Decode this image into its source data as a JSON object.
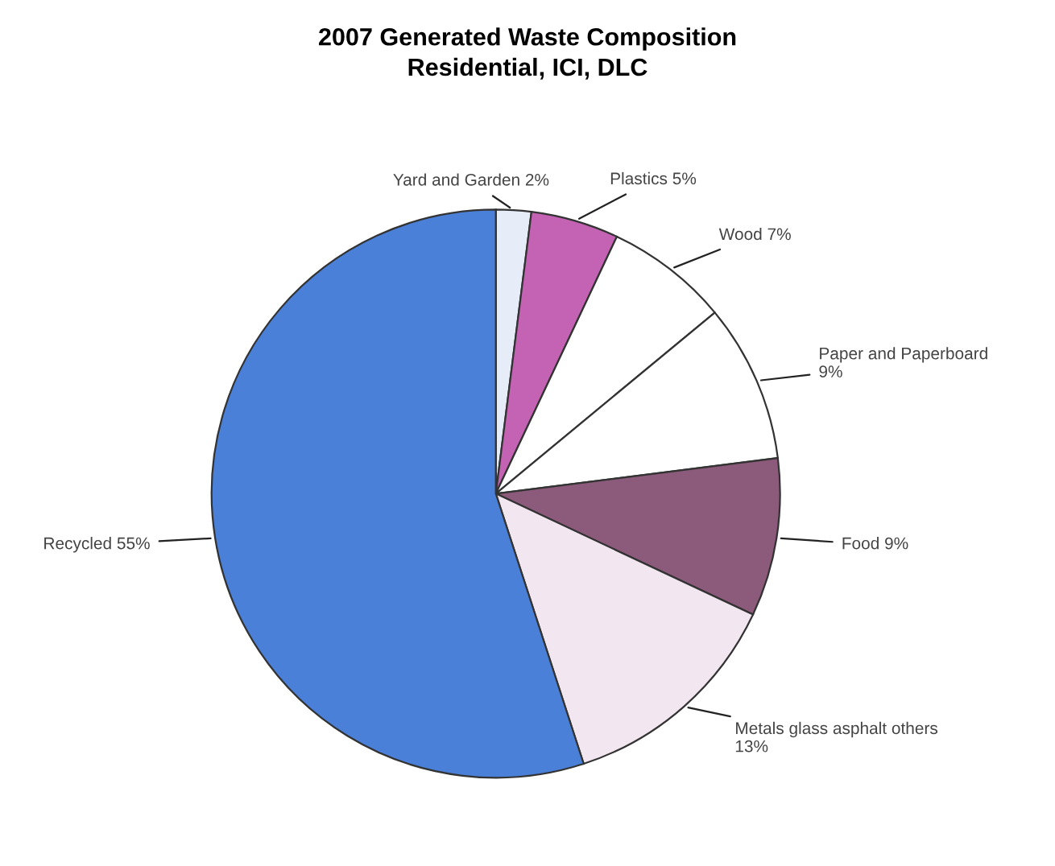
{
  "chart_data": {
    "type": "pie",
    "title": "2007 Generated Waste Composition",
    "subtitle": "Residential, ICI, DLC",
    "categories": [
      "Yard and Garden",
      "Plastics",
      "Wood",
      "Paper and Paperboard",
      "Food",
      "Metals glass asphalt others",
      "Recycled"
    ],
    "values": [
      2,
      5,
      7,
      9,
      9,
      13,
      55
    ],
    "value_labels": [
      "2%",
      "5%",
      "7%",
      "9%",
      "9%",
      "13%",
      "55%"
    ],
    "colors": [
      "#e6ecf8",
      "#c462b4",
      "#ffffff",
      "#ffffff",
      "#8c5a7a",
      "#f2e6f0",
      "#4a80d8"
    ]
  }
}
